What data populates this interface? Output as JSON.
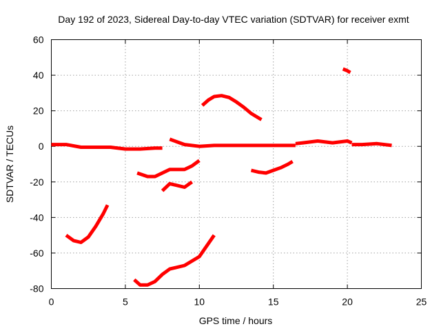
{
  "chart_data": {
    "type": "line",
    "title": "Day 192 of 2023, Sidereal Day-to-day VTEC variation (SDTVAR) for receiver exmt",
    "xlabel": "GPS time / hours",
    "ylabel": "SDTVAR / TECUs",
    "xlim": [
      0,
      25
    ],
    "ylim": [
      -80,
      60
    ],
    "xticks": [
      0,
      5,
      10,
      15,
      20,
      25
    ],
    "yticks": [
      -80,
      -60,
      -40,
      -20,
      0,
      20,
      40,
      60
    ],
    "grid": true,
    "series_color": "#ff0000",
    "series": [
      {
        "name": "arc-baseline-1",
        "x": [
          0,
          1,
          2,
          3,
          4,
          5,
          6,
          7,
          7.5
        ],
        "y": [
          1,
          1,
          -0.5,
          -0.5,
          -0.5,
          -1.5,
          -1.5,
          -1,
          -1
        ]
      },
      {
        "name": "arc-baseline-2",
        "x": [
          8,
          9,
          10,
          11,
          12,
          13,
          14,
          15,
          16,
          16.5
        ],
        "y": [
          4,
          1,
          0,
          0.5,
          0.5,
          0.5,
          0.5,
          0.5,
          0.5,
          0.5
        ]
      },
      {
        "name": "arc-baseline-3",
        "x": [
          16.5,
          17,
          18,
          19,
          20,
          20.3
        ],
        "y": [
          1.5,
          2,
          3,
          2,
          3,
          2
        ]
      },
      {
        "name": "arc-baseline-4",
        "x": [
          20.3,
          21,
          22,
          23
        ],
        "y": [
          1,
          1,
          1.5,
          0.5
        ]
      },
      {
        "name": "arc-rise-1",
        "x": [
          1,
          1.5,
          2,
          2.5,
          3,
          3.5,
          3.8
        ],
        "y": [
          -50,
          -53,
          -54,
          -51,
          -45,
          -38,
          -33
        ]
      },
      {
        "name": "arc-rise-2",
        "x": [
          5.6,
          6,
          6.5,
          7,
          7.5,
          8,
          9,
          10,
          11
        ],
        "y": [
          -75,
          -78,
          -78,
          -76,
          -72,
          -69,
          -67,
          -62,
          -50
        ]
      },
      {
        "name": "arc-mid-1",
        "x": [
          5.8,
          6.5,
          7,
          8,
          9,
          9.5,
          10
        ],
        "y": [
          -15,
          -17,
          -17,
          -13,
          -13,
          -11,
          -8
        ]
      },
      {
        "name": "arc-mid-2",
        "x": [
          7.5,
          8,
          8.5,
          9,
          9.5
        ],
        "y": [
          -25,
          -21,
          -22,
          -23,
          -20
        ]
      },
      {
        "name": "arc-hump",
        "x": [
          10.2,
          10.6,
          11,
          11.5,
          12,
          12.5,
          13,
          13.5,
          14,
          14.2
        ],
        "y": [
          23,
          26,
          28,
          28.5,
          27.5,
          25,
          22,
          18.5,
          16,
          15
        ]
      },
      {
        "name": "arc-dip",
        "x": [
          13.5,
          14,
          14.5,
          15,
          15.5,
          16,
          16.3
        ],
        "y": [
          -13.5,
          -14.5,
          -15,
          -13.5,
          -12,
          -10,
          -8.5
        ]
      },
      {
        "name": "arc-high",
        "x": [
          19.7,
          20,
          20.2
        ],
        "y": [
          43.5,
          42.5,
          41.5
        ]
      }
    ]
  }
}
